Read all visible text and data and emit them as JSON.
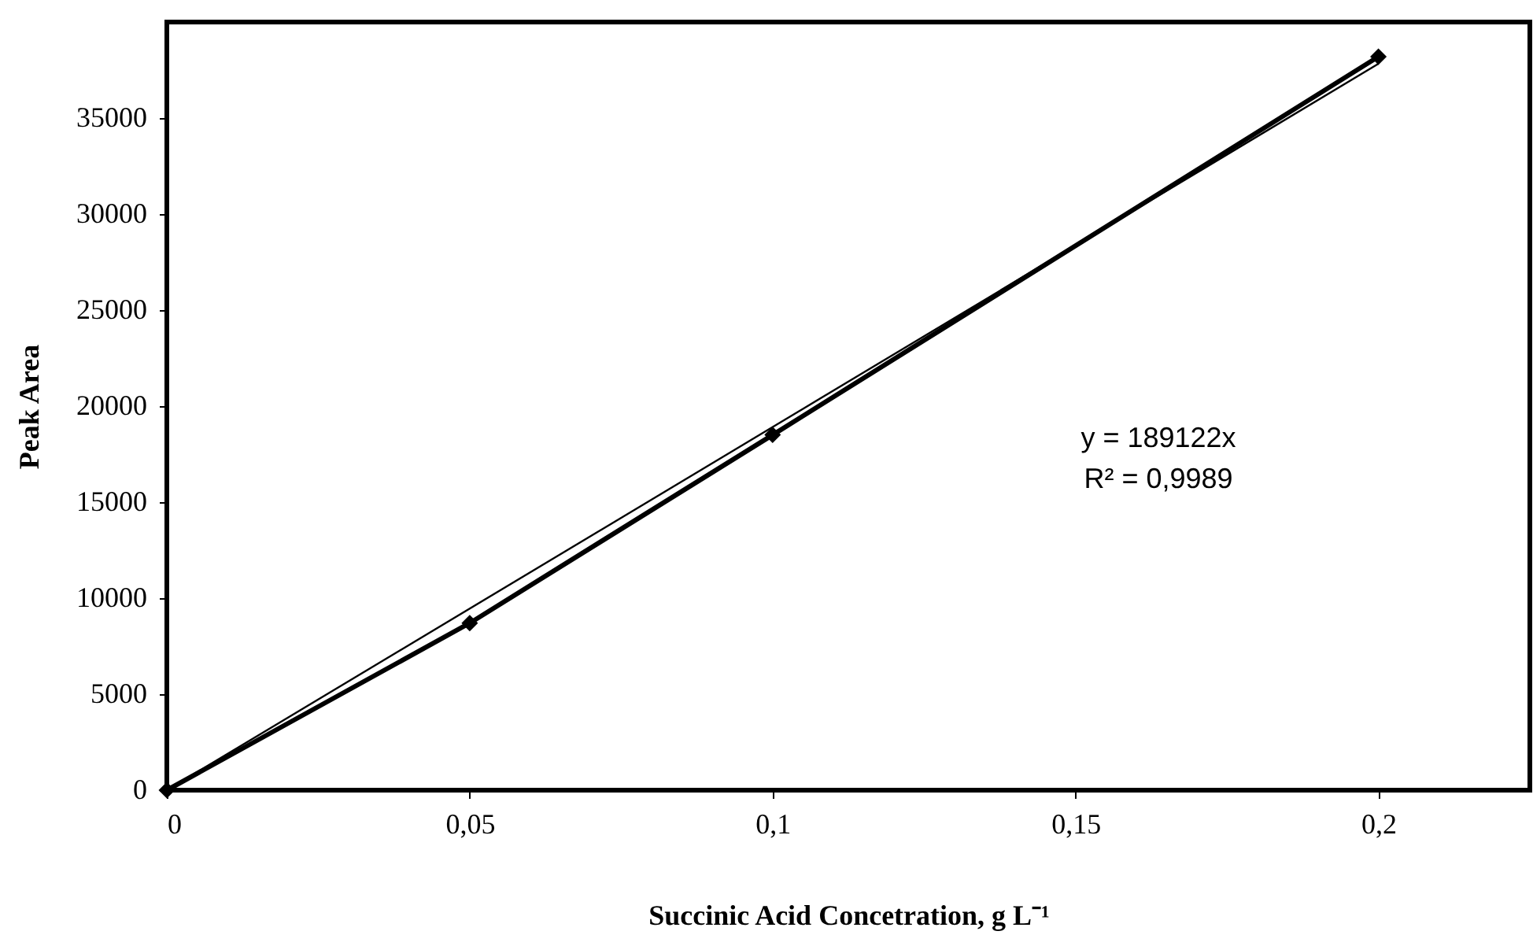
{
  "chart_data": {
    "type": "line",
    "xlabel": "Succinic Acid Concetration, g L⁻¹",
    "ylabel": "Peak Area",
    "series": [
      {
        "color": "#000000",
        "marker": "diamond",
        "x": [
          0,
          0.05,
          0.1,
          0.2
        ],
        "values": [
          0,
          8700,
          18500,
          38200
        ]
      },
      {
        "color": "#000000",
        "marker": "none",
        "x": [
          0,
          0.2
        ],
        "values": [
          0,
          37824
        ]
      }
    ],
    "xlim": [
      0,
      0.225
    ],
    "ylim": [
      0,
      40000
    ],
    "xticks": [
      0,
      {
        "value": 0.05,
        "label": "0,05"
      },
      {
        "value": 0.1,
        "label": "0,1"
      },
      {
        "value": 0.15,
        "label": "0,15"
      },
      {
        "value": 0.2,
        "label": "0,2"
      }
    ],
    "yticks": [
      0,
      5000,
      10000,
      15000,
      20000,
      25000,
      30000,
      35000
    ],
    "annotations": [
      "y = 189122x",
      "R² = 0,9989"
    ],
    "grid": false
  }
}
